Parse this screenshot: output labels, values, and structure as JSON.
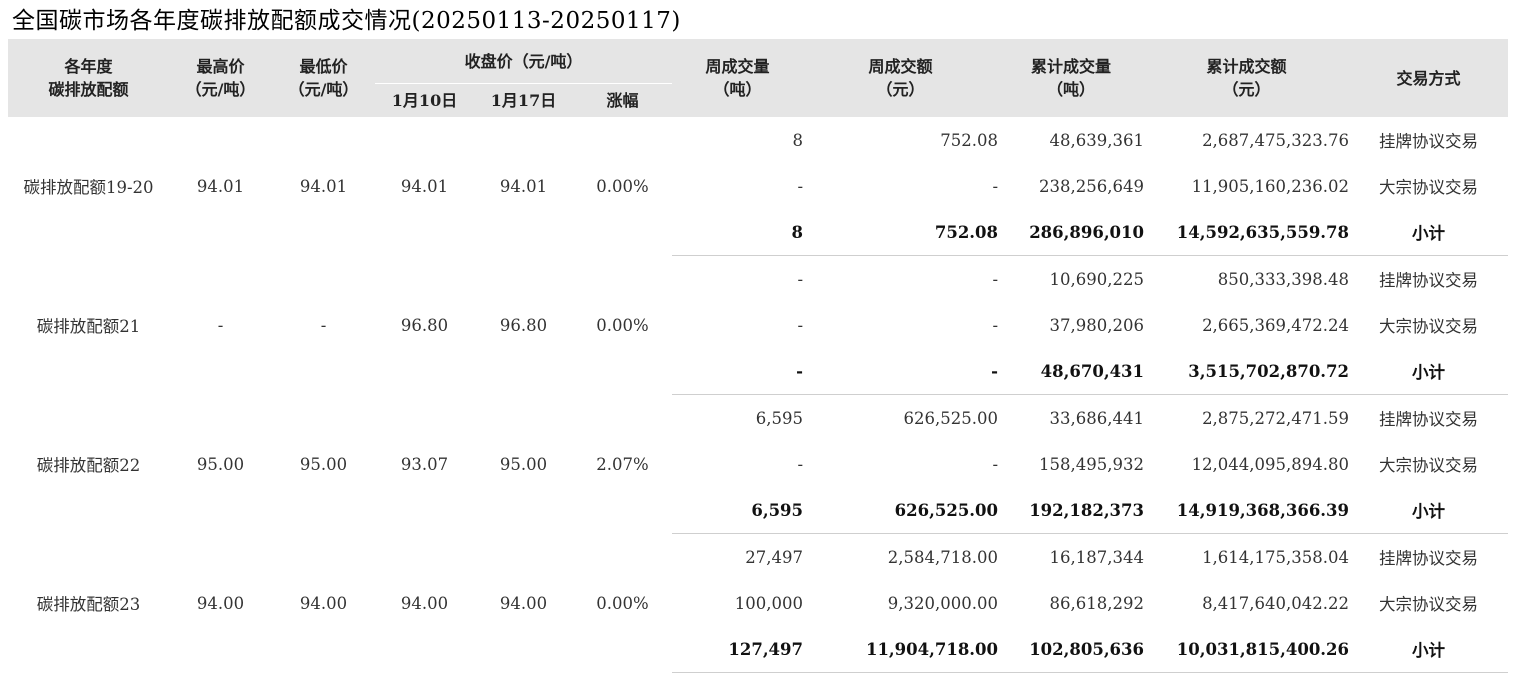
{
  "title": "全国碳市场各年度碳排放配额成交情况(20250113-20250117)",
  "headers": {
    "year": "各年度\n碳排放配额",
    "high": "最高价\n（元/吨）",
    "low": "最低价\n（元/吨）",
    "close": "收盘价（元/吨）",
    "close_d1": "1月10日",
    "close_d2": "1月17日",
    "change": "涨幅",
    "week_vol": "周成交量\n（吨）",
    "week_amt": "周成交额\n（元）",
    "cum_vol": "累计成交量\n（吨）",
    "cum_amt": "累计成交额\n（元）",
    "mode": "交易方式"
  },
  "groups": [
    {
      "name": "碳排放配额19-20",
      "high": "94.01",
      "low": "94.01",
      "close_d1": "94.01",
      "close_d2": "94.01",
      "change": "0.00%",
      "rows": [
        {
          "week_vol": "8",
          "week_amt": "752.08",
          "cum_vol": "48,639,361",
          "cum_amt": "2,687,475,323.76",
          "mode": "挂牌协议交易"
        },
        {
          "week_vol": "-",
          "week_amt": "-",
          "cum_vol": "238,256,649",
          "cum_amt": "11,905,160,236.02",
          "mode": "大宗协议交易"
        },
        {
          "week_vol": "8",
          "week_amt": "752.08",
          "cum_vol": "286,896,010",
          "cum_amt": "14,592,635,559.78",
          "mode": "小计"
        }
      ]
    },
    {
      "name": "碳排放配额21",
      "high": "-",
      "low": "-",
      "close_d1": "96.80",
      "close_d2": "96.80",
      "change": "0.00%",
      "rows": [
        {
          "week_vol": "-",
          "week_amt": "-",
          "cum_vol": "10,690,225",
          "cum_amt": "850,333,398.48",
          "mode": "挂牌协议交易"
        },
        {
          "week_vol": "-",
          "week_amt": "-",
          "cum_vol": "37,980,206",
          "cum_amt": "2,665,369,472.24",
          "mode": "大宗协议交易"
        },
        {
          "week_vol": "-",
          "week_amt": "-",
          "cum_vol": "48,670,431",
          "cum_amt": "3,515,702,870.72",
          "mode": "小计"
        }
      ]
    },
    {
      "name": "碳排放配额22",
      "high": "95.00",
      "low": "95.00",
      "close_d1": "93.07",
      "close_d2": "95.00",
      "change": "2.07%",
      "rows": [
        {
          "week_vol": "6,595",
          "week_amt": "626,525.00",
          "cum_vol": "33,686,441",
          "cum_amt": "2,875,272,471.59",
          "mode": "挂牌协议交易"
        },
        {
          "week_vol": "-",
          "week_amt": "-",
          "cum_vol": "158,495,932",
          "cum_amt": "12,044,095,894.80",
          "mode": "大宗协议交易"
        },
        {
          "week_vol": "6,595",
          "week_amt": "626,525.00",
          "cum_vol": "192,182,373",
          "cum_amt": "14,919,368,366.39",
          "mode": "小计"
        }
      ]
    },
    {
      "name": "碳排放配额23",
      "high": "94.00",
      "low": "94.00",
      "close_d1": "94.00",
      "close_d2": "94.00",
      "change": "0.00%",
      "rows": [
        {
          "week_vol": "27,497",
          "week_amt": "2,584,718.00",
          "cum_vol": "16,187,344",
          "cum_amt": "1,614,175,358.04",
          "mode": "挂牌协议交易"
        },
        {
          "week_vol": "100,000",
          "week_amt": "9,320,000.00",
          "cum_vol": "86,618,292",
          "cum_amt": "8,417,640,042.22",
          "mode": "大宗协议交易"
        },
        {
          "week_vol": "127,497",
          "week_amt": "11,904,718.00",
          "cum_vol": "102,805,636",
          "cum_amt": "10,031,815,400.26",
          "mode": "小计"
        }
      ]
    }
  ]
}
